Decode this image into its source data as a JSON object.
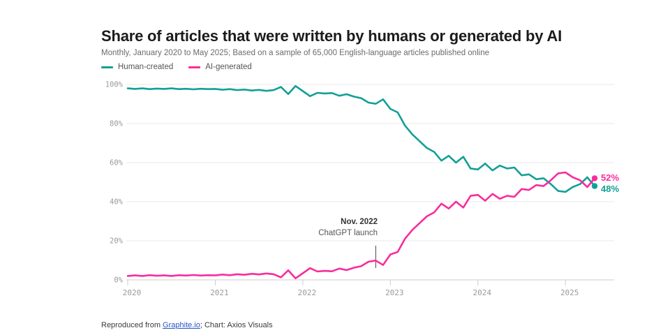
{
  "header": {
    "title": "Share of articles that were written by humans or generated by AI",
    "subtitle": "Monthly, January 2020 to May 2025; Based on a sample of 65,000 English-language articles published online"
  },
  "legend": [
    {
      "label": "Human-created",
      "color": "#11a096"
    },
    {
      "label": "AI-generated",
      "color": "#f92c9d"
    }
  ],
  "chart_data": {
    "type": "line",
    "title": "Share of articles that were written by humans or generated by AI",
    "frequency": "monthly",
    "x_start": "2020-01",
    "x_end": "2025-05",
    "categories": [
      "2020-01",
      "2020-02",
      "2020-03",
      "2020-04",
      "2020-05",
      "2020-06",
      "2020-07",
      "2020-08",
      "2020-09",
      "2020-10",
      "2020-11",
      "2020-12",
      "2021-01",
      "2021-02",
      "2021-03",
      "2021-04",
      "2021-05",
      "2021-06",
      "2021-07",
      "2021-08",
      "2021-09",
      "2021-10",
      "2021-11",
      "2021-12",
      "2022-01",
      "2022-02",
      "2022-03",
      "2022-04",
      "2022-05",
      "2022-06",
      "2022-07",
      "2022-08",
      "2022-09",
      "2022-10",
      "2022-11",
      "2022-12",
      "2023-01",
      "2023-02",
      "2023-03",
      "2023-04",
      "2023-05",
      "2023-06",
      "2023-07",
      "2023-08",
      "2023-09",
      "2023-10",
      "2023-11",
      "2023-12",
      "2024-01",
      "2024-02",
      "2024-03",
      "2024-04",
      "2024-05",
      "2024-06",
      "2024-07",
      "2024-08",
      "2024-09",
      "2024-10",
      "2024-11",
      "2024-12",
      "2025-01",
      "2025-02",
      "2025-03",
      "2025-04",
      "2025-05"
    ],
    "x_tick_labels": [
      "2020",
      "2021",
      "2022",
      "2023",
      "2024",
      "2025"
    ],
    "y_tick_labels": [
      "100%",
      "80%",
      "60%",
      "40%",
      "20%",
      "0%"
    ],
    "ylim": [
      0,
      100
    ],
    "grid": true,
    "legend_position": "top-left",
    "series": [
      {
        "name": "Human-created",
        "color": "#11a096",
        "end_label": "48%",
        "values": [
          98.0,
          97.7,
          98.0,
          97.6,
          97.9,
          97.7,
          98.0,
          97.6,
          97.8,
          97.5,
          97.8,
          97.6,
          97.7,
          97.3,
          97.6,
          97.1,
          97.4,
          96.9,
          97.2,
          96.7,
          97.1,
          98.7,
          95.1,
          99.2,
          96.6,
          94.0,
          95.7,
          95.4,
          95.6,
          94.2,
          95.0,
          93.8,
          93.0,
          90.7,
          90.1,
          92.4,
          87.5,
          85.7,
          79.0,
          74.5,
          71.0,
          67.5,
          65.5,
          61.0,
          63.5,
          60.0,
          63.0,
          57.0,
          56.5,
          59.5,
          56.0,
          58.5,
          57.0,
          57.5,
          53.5,
          54.0,
          51.5,
          52.0,
          49.0,
          45.5,
          45.0,
          47.5,
          49.0,
          52.5,
          48.0
        ]
      },
      {
        "name": "AI-generated",
        "color": "#f92c9d",
        "end_label": "52%",
        "values": [
          2.0,
          2.3,
          2.0,
          2.4,
          2.1,
          2.3,
          2.0,
          2.4,
          2.2,
          2.5,
          2.2,
          2.4,
          2.3,
          2.7,
          2.4,
          2.9,
          2.6,
          3.1,
          2.8,
          3.3,
          2.9,
          1.3,
          4.9,
          0.8,
          3.4,
          6.0,
          4.3,
          4.6,
          4.4,
          5.8,
          5.0,
          6.2,
          7.0,
          9.3,
          9.9,
          7.6,
          13.0,
          14.3,
          21.0,
          25.5,
          29.0,
          32.5,
          34.5,
          39.0,
          36.5,
          40.0,
          37.0,
          43.0,
          43.5,
          40.5,
          44.0,
          41.5,
          43.0,
          42.5,
          46.5,
          46.0,
          48.5,
          48.0,
          51.0,
          54.5,
          55.0,
          52.5,
          51.0,
          47.5,
          52.0
        ]
      }
    ],
    "annotation": {
      "line1": "Nov. 2022",
      "line2": "ChatGPT launch",
      "x": "2022-11",
      "x_index": 34
    }
  },
  "footer": {
    "prefix": "Reproduced from ",
    "link_label": "Graphite.io",
    "suffix": "; Chart: Axios Visuals"
  }
}
